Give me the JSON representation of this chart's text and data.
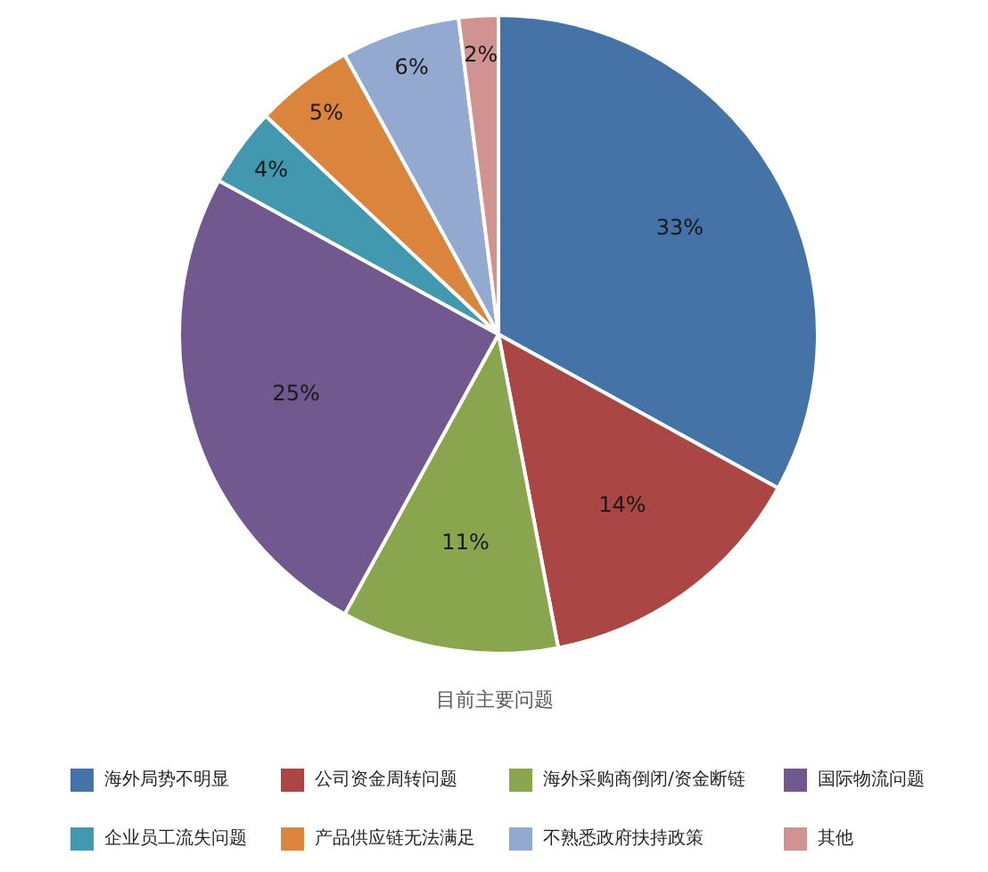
{
  "chart_data": {
    "type": "pie",
    "title": "目前主要问题",
    "categories": [
      "海外局势不明显",
      "公司资金周转问题",
      "海外采购商倒闭/资金断链",
      "国际物流问题",
      "企业员工流失问题",
      "产品供应链无法满足",
      "不熟悉政府扶持政策",
      "其他"
    ],
    "values": [
      33,
      14,
      11,
      25,
      4,
      5,
      6,
      2
    ],
    "colors": [
      "#4572a7",
      "#aa4643",
      "#89a54e",
      "#71588f",
      "#4198af",
      "#db843d",
      "#93a9cf",
      "#d19392"
    ],
    "value_labels": [
      "33%",
      "14%",
      "11%",
      "25%",
      "4%",
      "5%",
      "6%",
      "2%"
    ],
    "legend": "bottom"
  }
}
